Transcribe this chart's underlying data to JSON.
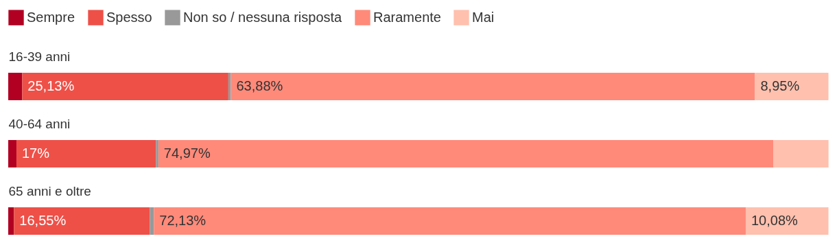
{
  "chart_data": {
    "type": "bar",
    "stacked": true,
    "orientation": "horizontal",
    "categories": [
      "16-39 anni",
      "40-64 anni",
      "65 anni e oltre"
    ],
    "series": [
      {
        "name": "Sempre",
        "color": "#b10021",
        "values": [
          1.7,
          1.0,
          0.7
        ],
        "value_labels": [
          null,
          null,
          null
        ]
      },
      {
        "name": "Spesso",
        "color": "#ee5048",
        "values": [
          25.13,
          17,
          16.55
        ],
        "value_labels": [
          "25,13%",
          "17%",
          "16,55%"
        ]
      },
      {
        "name": "Non so / nessuna risposta",
        "color": "#999999",
        "values": [
          0.3,
          0.3,
          0.5
        ],
        "value_labels": [
          null,
          null,
          null
        ]
      },
      {
        "name": "Raramente",
        "color": "#ff8a7a",
        "values": [
          63.88,
          74.97,
          72.13
        ],
        "value_labels": [
          "63,88%",
          "74,97%",
          "72,13%"
        ]
      },
      {
        "name": "Mai",
        "color": "#ffc0ae",
        "values": [
          8.95,
          6.7,
          10.08
        ],
        "value_labels": [
          "8,95%",
          null,
          "10,08%"
        ]
      }
    ],
    "xlim": [
      0,
      100
    ],
    "tick_labels": "y",
    "legend": "top left"
  }
}
